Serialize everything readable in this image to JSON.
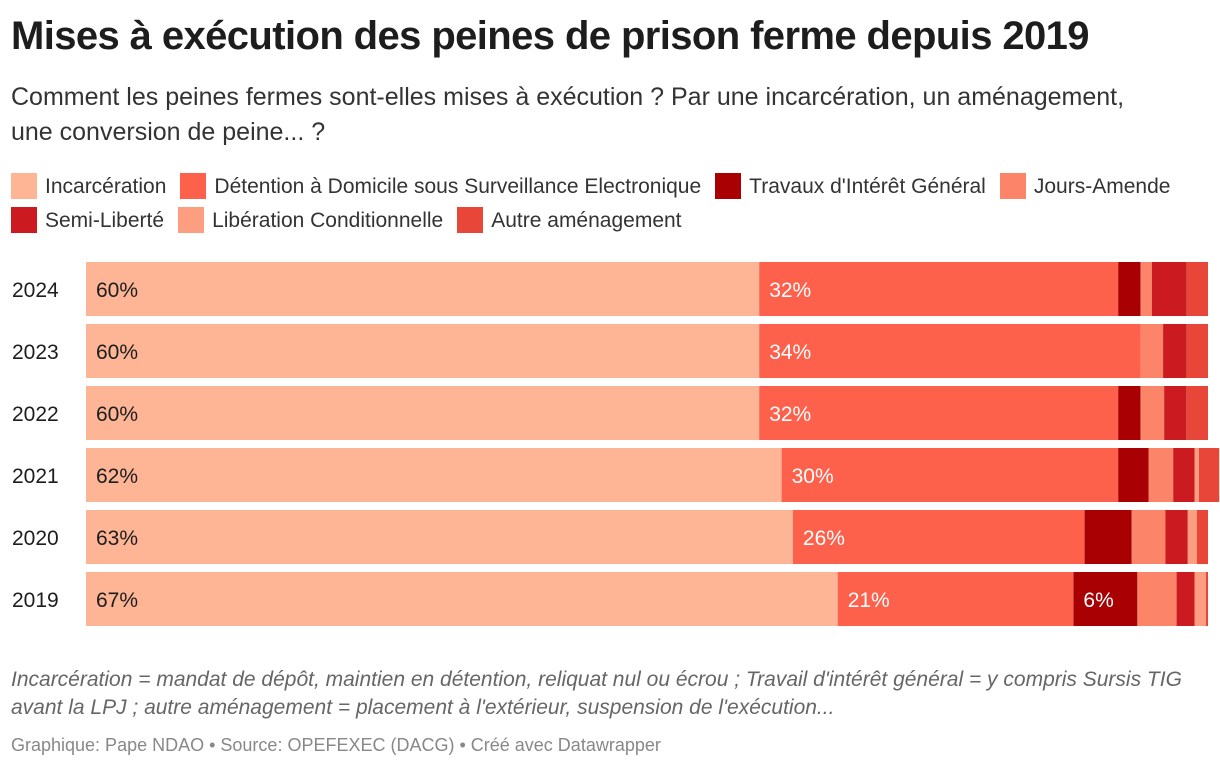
{
  "header": {
    "title": "Mises à exécution des peines de prison ferme depuis 2019",
    "subtitle": "Comment les peines fermes sont-elles mises à exécution ? Par une incarcération, un aménagement, une conversion de peine... ?"
  },
  "legend": [
    {
      "label": "Incarcération",
      "color": "#fdb596"
    },
    {
      "label": "Détention à Domicile sous Surveillance Electronique",
      "color": "#fd614c"
    },
    {
      "label": "Travaux d'Intérêt Général",
      "color": "#a90003"
    },
    {
      "label": "Jours-Amende",
      "color": "#fc8469"
    },
    {
      "label": "Semi-Liberté",
      "color": "#cb1b20"
    },
    {
      "label": "Libération Conditionnelle",
      "color": "#fd9e80"
    },
    {
      "label": "Autre aménagement",
      "color": "#e9463a"
    }
  ],
  "chart_data": {
    "type": "bar",
    "orientation": "horizontal",
    "stacked": true,
    "normalized_to": 100,
    "categories": [
      "2024",
      "2023",
      "2022",
      "2021",
      "2020",
      "2019"
    ],
    "series": [
      {
        "name": "Incarcération",
        "color": "#fdb596",
        "values": [
          60,
          60,
          60,
          62,
          63,
          67
        ],
        "labels": [
          "60%",
          "60%",
          "60%",
          "62%",
          "63%",
          "67%"
        ],
        "label_color": "#1d1d1d"
      },
      {
        "name": "Détention à Domicile sous Surveillance Electronique",
        "color": "#fd614c",
        "values": [
          32,
          34,
          32,
          30,
          26,
          21
        ],
        "labels": [
          "32%",
          "34%",
          "32%",
          "30%",
          "26%",
          "21%"
        ],
        "label_color": "#ffffff"
      },
      {
        "name": "Travaux d'Intérêt Général",
        "color": "#a90003",
        "values": [
          2,
          0,
          2,
          2.7,
          4.2,
          5.7
        ],
        "labels": [
          "",
          "",
          "",
          "",
          "",
          "6%"
        ],
        "label_color": "#ffffff"
      },
      {
        "name": "Jours-Amende",
        "color": "#fc8469",
        "values": [
          1,
          2,
          2.1,
          2.2,
          3,
          3.5
        ],
        "labels": [
          "",
          "",
          "",
          "",
          "",
          ""
        ],
        "label_color": "#ffffff"
      },
      {
        "name": "Semi-Liberté",
        "color": "#cb1b20",
        "values": [
          3.1,
          2.1,
          2,
          1.9,
          2,
          1.6
        ],
        "labels": [
          "",
          "",
          "",
          "",
          "",
          ""
        ],
        "label_color": "#ffffff"
      },
      {
        "name": "Libération Conditionnelle",
        "color": "#fd9e80",
        "values": [
          0,
          0,
          0,
          0.4,
          0.8,
          1
        ],
        "labels": [
          "",
          "",
          "",
          "",
          "",
          ""
        ],
        "label_color": "#ffffff"
      },
      {
        "name": "Autre aménagement",
        "color": "#e9463a",
        "values": [
          1.9,
          1.9,
          1.9,
          1.8,
          1,
          0.2
        ],
        "labels": [
          "",
          "",
          "",
          "",
          "",
          ""
        ],
        "label_color": "#ffffff"
      }
    ],
    "title": "Mises à exécution des peines de prison ferme depuis 2019",
    "xlabel": "",
    "ylabel": "",
    "xlim": [
      0,
      100
    ],
    "grid": false,
    "legend_position": "top"
  },
  "footer": {
    "notes": "Incarcération = mandat de dépôt, maintien en détention, reliquat nul ou écrou ; Travail d'intérêt général = y compris Sursis TIG avant la LPJ ; autre aménagement = placement à l'extérieur, suspension de l'exécution...",
    "credits": "Graphique: Pape NDAO • Source: OPEFEXEC (DACG) • Créé avec Datawrapper"
  }
}
